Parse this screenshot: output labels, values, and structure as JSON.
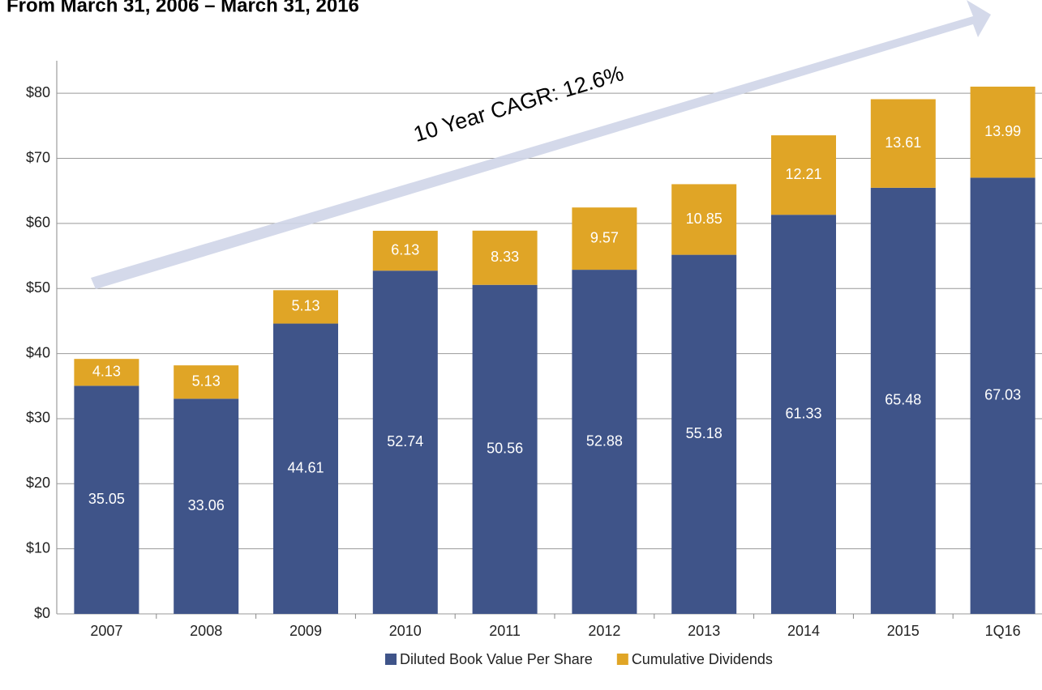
{
  "chart_data": {
    "type": "bar",
    "stacked": true,
    "title": "From March 31, 2006 – March 31, 2016",
    "annotation": "10 Year CAGR: 12.6%",
    "categories": [
      "2007",
      "2008",
      "2009",
      "2010",
      "2011",
      "2012",
      "2013",
      "2014",
      "2015",
      "1Q16"
    ],
    "series": [
      {
        "name": "Diluted Book Value Per Share",
        "color": "#3f5489",
        "values": [
          35.05,
          33.06,
          44.61,
          52.74,
          50.56,
          52.88,
          55.18,
          61.33,
          65.48,
          67.03
        ]
      },
      {
        "name": "Cumulative Dividends",
        "color": "#e0a526",
        "values": [
          4.13,
          5.13,
          5.13,
          6.13,
          8.33,
          9.57,
          10.85,
          12.21,
          13.61,
          13.99
        ]
      }
    ],
    "ylim": [
      0,
      85
    ],
    "yticks": [
      {
        "value": 0,
        "label": "$0"
      },
      {
        "value": 10,
        "label": "$10"
      },
      {
        "value": 20,
        "label": "$20"
      },
      {
        "value": 30,
        "label": "$30"
      },
      {
        "value": 40,
        "label": "$40"
      },
      {
        "value": 50,
        "label": "$50"
      },
      {
        "value": 60,
        "label": "$60"
      },
      {
        "value": 70,
        "label": "$70"
      },
      {
        "value": 80,
        "label": "$80"
      }
    ],
    "grid": true,
    "legend": "bottom"
  }
}
